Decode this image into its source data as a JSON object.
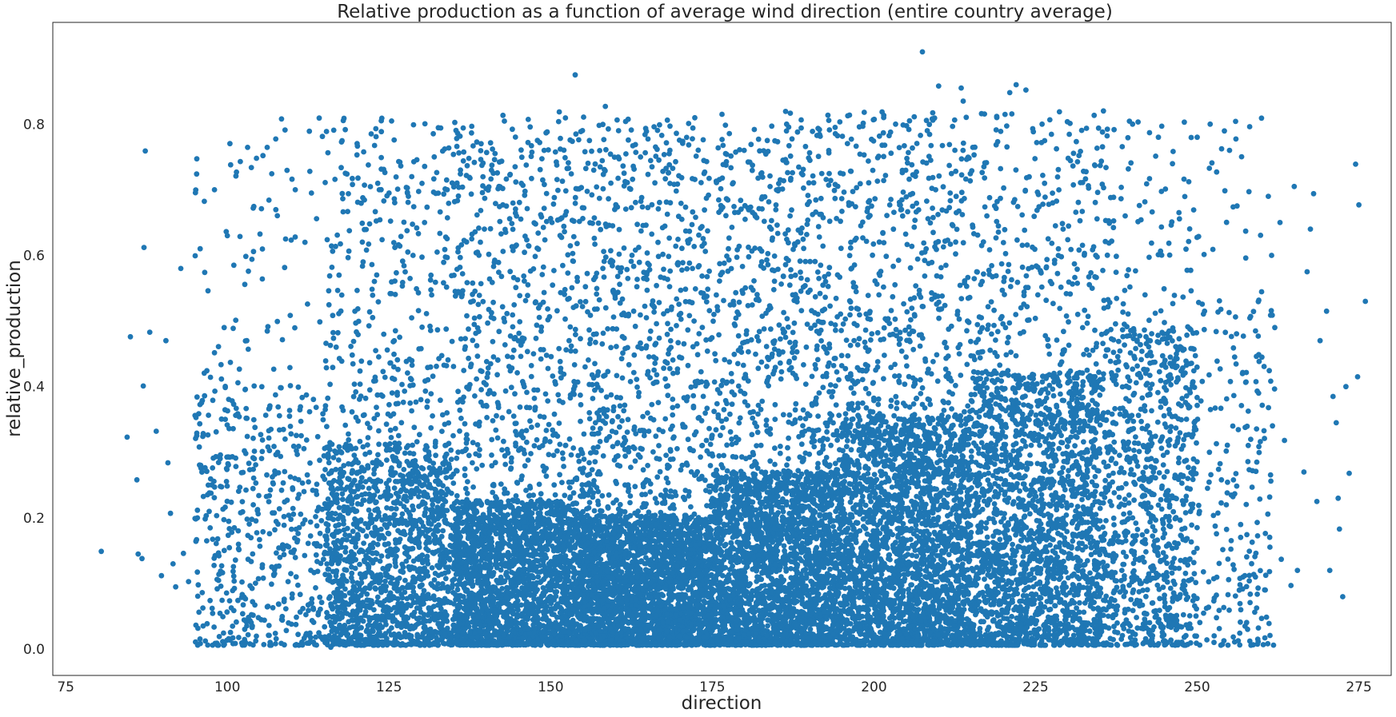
{
  "chart_data": {
    "type": "scatter",
    "title": "Relative production as a function of average wind direction (entire country average)",
    "xlabel": "direction",
    "ylabel": "relative_production",
    "xlim": [
      73,
      280
    ],
    "ylim": [
      -0.04,
      0.955
    ],
    "xticks": [
      75,
      100,
      125,
      150,
      175,
      200,
      225,
      250,
      275
    ],
    "xtick_labels": [
      "75",
      "100",
      "125",
      "150",
      "175",
      "200",
      "225",
      "250",
      "275"
    ],
    "yticks": [
      0.0,
      0.2,
      0.4,
      0.6,
      0.8
    ],
    "ytick_labels": [
      "0.0",
      "0.2",
      "0.4",
      "0.6",
      "0.8"
    ],
    "grid": false,
    "legend": "none",
    "color": "#1f77b4",
    "series": [
      {
        "points": [
          [
            80.5,
            0.149
          ],
          [
            84.5,
            0.323
          ],
          [
            85.0,
            0.476
          ],
          [
            86.0,
            0.258
          ],
          [
            86.2,
            0.145
          ],
          [
            86.8,
            0.138
          ],
          [
            87.3,
            0.759
          ],
          [
            87.1,
            0.612
          ],
          [
            87.0,
            0.401
          ],
          [
            88.0,
            0.483
          ],
          [
            89.0,
            0.332
          ],
          [
            89.8,
            0.112
          ],
          [
            90.5,
            0.47
          ],
          [
            90.8,
            0.284
          ],
          [
            91.2,
            0.207
          ],
          [
            91.6,
            0.13
          ],
          [
            92.0,
            0.095
          ],
          [
            92.8,
            0.58
          ],
          [
            93.2,
            0.146
          ],
          [
            94.0,
            0.103
          ],
          [
            95.0,
            0.356
          ],
          [
            95.5,
            0.098
          ],
          [
            96.5,
            0.574
          ],
          [
            97.0,
            0.546
          ],
          [
            98.0,
            0.7
          ],
          [
            98.5,
            0.168
          ],
          [
            99.5,
            0.49
          ],
          [
            100.5,
            0.738
          ],
          [
            101.0,
            0.585
          ],
          [
            102.0,
            0.743
          ],
          [
            103.0,
            0.47
          ],
          [
            104.0,
            0.672
          ],
          [
            104.5,
            0.748
          ],
          [
            103.8,
            0.594
          ],
          [
            104.8,
            0.048
          ],
          [
            105.5,
            0.752
          ],
          [
            103.2,
            0.022
          ],
          [
            100.0,
            0.63
          ],
          [
            110.0,
            0.716
          ],
          [
            110.5,
            0.7
          ],
          [
            112.0,
            0.62
          ],
          [
            113.0,
            0.695
          ],
          [
            118.5,
            0.724
          ],
          [
            116.0,
            0.003
          ],
          [
            121.0,
            0.59
          ],
          [
            122.0,
            0.648
          ],
          [
            123.5,
            0.7
          ],
          [
            125.0,
            0.695
          ],
          [
            126.5,
            0.743
          ],
          [
            128.0,
            0.69
          ],
          [
            130.5,
            0.65
          ],
          [
            132.0,
            0.75
          ],
          [
            134.0,
            0.7
          ],
          [
            135.5,
            0.766
          ],
          [
            136.5,
            0.744
          ],
          [
            139.5,
            0.706
          ],
          [
            141.0,
            0.762
          ],
          [
            142.0,
            0.705
          ],
          [
            144.5,
            0.735
          ],
          [
            146.5,
            0.772
          ],
          [
            149.0,
            0.76
          ],
          [
            151.5,
            0.762
          ],
          [
            153.8,
            0.875
          ],
          [
            156.0,
            0.775
          ],
          [
            157.5,
            0.798
          ],
          [
            160.5,
            0.79
          ],
          [
            166.0,
            0.796
          ],
          [
            172.0,
            0.794
          ],
          [
            176.5,
            0.815
          ],
          [
            183.5,
            0.775
          ],
          [
            186.5,
            0.8
          ],
          [
            194.0,
            0.795
          ],
          [
            198.5,
            0.818
          ],
          [
            201.5,
            0.81
          ],
          [
            205.5,
            0.805
          ],
          [
            207.5,
            0.91
          ],
          [
            210.0,
            0.858
          ],
          [
            213.5,
            0.855
          ],
          [
            213.8,
            0.835
          ],
          [
            219.0,
            0.81
          ],
          [
            221.0,
            0.848
          ],
          [
            222.0,
            0.86
          ],
          [
            223.5,
            0.852
          ],
          [
            226.0,
            0.8
          ],
          [
            235.5,
            0.82
          ],
          [
            240.0,
            0.8
          ],
          [
            244.0,
            0.78
          ],
          [
            248.0,
            0.803
          ],
          [
            250.0,
            0.78
          ],
          [
            252.0,
            0.8
          ],
          [
            253.0,
            0.727
          ],
          [
            255.0,
            0.76
          ],
          [
            258.0,
            0.697
          ],
          [
            261.0,
            0.69
          ],
          [
            265.0,
            0.705
          ],
          [
            267.0,
            0.575
          ],
          [
            267.5,
            0.64
          ],
          [
            268.0,
            0.694
          ],
          [
            269.0,
            0.47
          ],
          [
            270.0,
            0.515
          ],
          [
            271.0,
            0.385
          ],
          [
            271.5,
            0.345
          ],
          [
            271.8,
            0.23
          ],
          [
            272.0,
            0.183
          ],
          [
            272.5,
            0.08
          ],
          [
            273.0,
            0.4
          ],
          [
            273.5,
            0.268
          ],
          [
            274.5,
            0.739
          ],
          [
            275.0,
            0.677
          ],
          [
            276.0,
            0.53
          ],
          [
            274.8,
            0.415
          ],
          [
            262.0,
            0.49
          ],
          [
            263.5,
            0.318
          ],
          [
            264.5,
            0.097
          ],
          [
            248.3,
            0.037
          ],
          [
            260.0,
            0.445
          ],
          [
            257.5,
            0.596
          ],
          [
            262.8,
            0.65
          ],
          [
            266.5,
            0.27
          ],
          [
            270.5,
            0.12
          ],
          [
            265.5,
            0.12
          ],
          [
            268.5,
            0.225
          ],
          [
            258.5,
            0.163
          ],
          [
            255.5,
            0.34
          ],
          [
            254.5,
            0.22
          ],
          [
            259.0,
            0.11
          ],
          [
            256.5,
            0.09
          ],
          [
            261.5,
            0.6
          ],
          [
            259.5,
            0.39
          ],
          [
            263.0,
            0.137
          ],
          [
            257.0,
            0.42
          ]
        ],
        "cloud": [
          {
            "x": [
              95,
              115
            ],
            "y_mode": 0.18,
            "n": 550
          },
          {
            "x": [
              115,
              135
            ],
            "y_mode": 0.14,
            "n": 1800
          },
          {
            "x": [
              135,
              155
            ],
            "y_mode": 0.1,
            "n": 2800
          },
          {
            "x": [
              155,
              175
            ],
            "y_mode": 0.09,
            "n": 3200
          },
          {
            "x": [
              175,
              195
            ],
            "y_mode": 0.12,
            "n": 3000
          },
          {
            "x": [
              195,
              215
            ],
            "y_mode": 0.16,
            "n": 2900
          },
          {
            "x": [
              215,
              235
            ],
            "y_mode": 0.19,
            "n": 2300
          },
          {
            "x": [
              235,
              250
            ],
            "y_mode": 0.22,
            "n": 1000
          },
          {
            "x": [
              250,
              262
            ],
            "y_mode": 0.24,
            "n": 220
          }
        ]
      }
    ]
  }
}
